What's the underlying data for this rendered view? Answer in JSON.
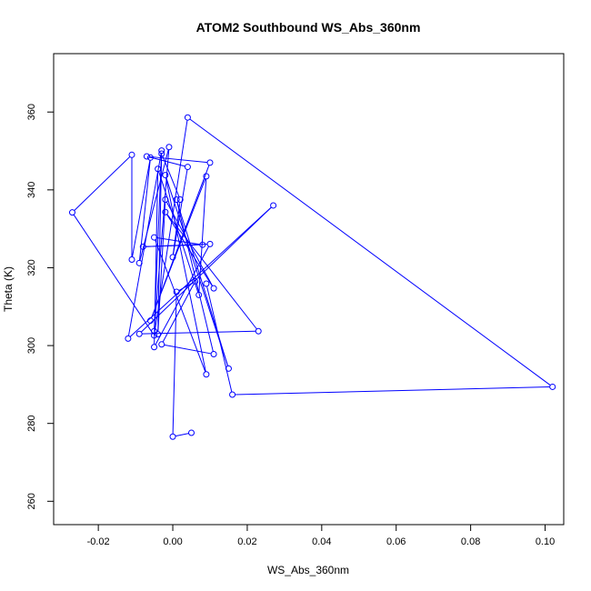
{
  "chart_data": {
    "type": "line",
    "title": "ATOM2 Southbound WS_Abs_360nm",
    "xlabel": "WS_Abs_360nm",
    "ylabel": "Theta (K)",
    "xlim": [
      -0.032,
      0.105
    ],
    "ylim": [
      254,
      375
    ],
    "xticks": [
      -0.02,
      0.0,
      0.02,
      0.04,
      0.06,
      0.08,
      0.1
    ],
    "xtick_labels": [
      "-0.02",
      "0.00",
      "0.02",
      "0.04",
      "0.06",
      "0.08",
      "0.10"
    ],
    "yticks": [
      260,
      280,
      300,
      320,
      340,
      360
    ],
    "ytick_labels": [
      "260",
      "280",
      "300",
      "320",
      "340",
      "360"
    ],
    "grid": false,
    "series": [
      {
        "color": "#0000ff",
        "marker": "open-circle",
        "points": [
          {
            "x": 0.005,
            "y": 277.6
          },
          {
            "x": 0.0,
            "y": 276.6
          },
          {
            "x": 0.001,
            "y": 313.8
          },
          {
            "x": 0.006,
            "y": 316.5
          },
          {
            "x": -0.003,
            "y": 300.3
          },
          {
            "x": 0.011,
            "y": 297.8
          },
          {
            "x": 0.001,
            "y": 337.5
          },
          {
            "x": 0.015,
            "y": 294.1
          },
          {
            "x": -0.002,
            "y": 343.8
          },
          {
            "x": 0.009,
            "y": 292.6
          },
          {
            "x": -0.005,
            "y": 327.8
          },
          {
            "x": 0.008,
            "y": 325.9
          },
          {
            "x": -0.008,
            "y": 325.4
          },
          {
            "x": 0.01,
            "y": 326.1
          },
          {
            "x": -0.005,
            "y": 299.6
          },
          {
            "x": -0.004,
            "y": 345.4
          },
          {
            "x": 0.007,
            "y": 313.0
          },
          {
            "x": 0.009,
            "y": 343.5
          },
          {
            "x": -0.006,
            "y": 306.4
          },
          {
            "x": 0.01,
            "y": 347.0
          },
          {
            "x": -0.007,
            "y": 348.6
          },
          {
            "x": 0.004,
            "y": 345.9
          },
          {
            "x": 0.0,
            "y": 322.7
          },
          {
            "x": 0.002,
            "y": 337.5
          },
          {
            "x": -0.003,
            "y": 349.3
          },
          {
            "x": -0.004,
            "y": 302.9
          },
          {
            "x": -0.002,
            "y": 337.5
          },
          {
            "x": 0.011,
            "y": 314.7
          },
          {
            "x": -0.002,
            "y": 334.3
          },
          {
            "x": 0.023,
            "y": 303.7
          },
          {
            "x": -0.009,
            "y": 303.0
          },
          {
            "x": 0.027,
            "y": 336.0
          },
          {
            "x": -0.012,
            "y": 301.8
          },
          {
            "x": -0.003,
            "y": 350.1
          },
          {
            "x": -0.005,
            "y": 303.7
          },
          {
            "x": -0.001,
            "y": 351.0
          },
          {
            "x": -0.009,
            "y": 321.2
          },
          {
            "x": -0.006,
            "y": 348.3
          },
          {
            "x": -0.011,
            "y": 322.1
          },
          {
            "x": -0.011,
            "y": 349.0
          },
          {
            "x": -0.027,
            "y": 334.2
          },
          {
            "x": -0.005,
            "y": 302.6
          },
          {
            "x": 0.004,
            "y": 358.6
          },
          {
            "x": 0.102,
            "y": 289.4
          },
          {
            "x": 0.016,
            "y": 287.4
          },
          {
            "x": 0.009,
            "y": 315.9
          }
        ]
      }
    ]
  }
}
